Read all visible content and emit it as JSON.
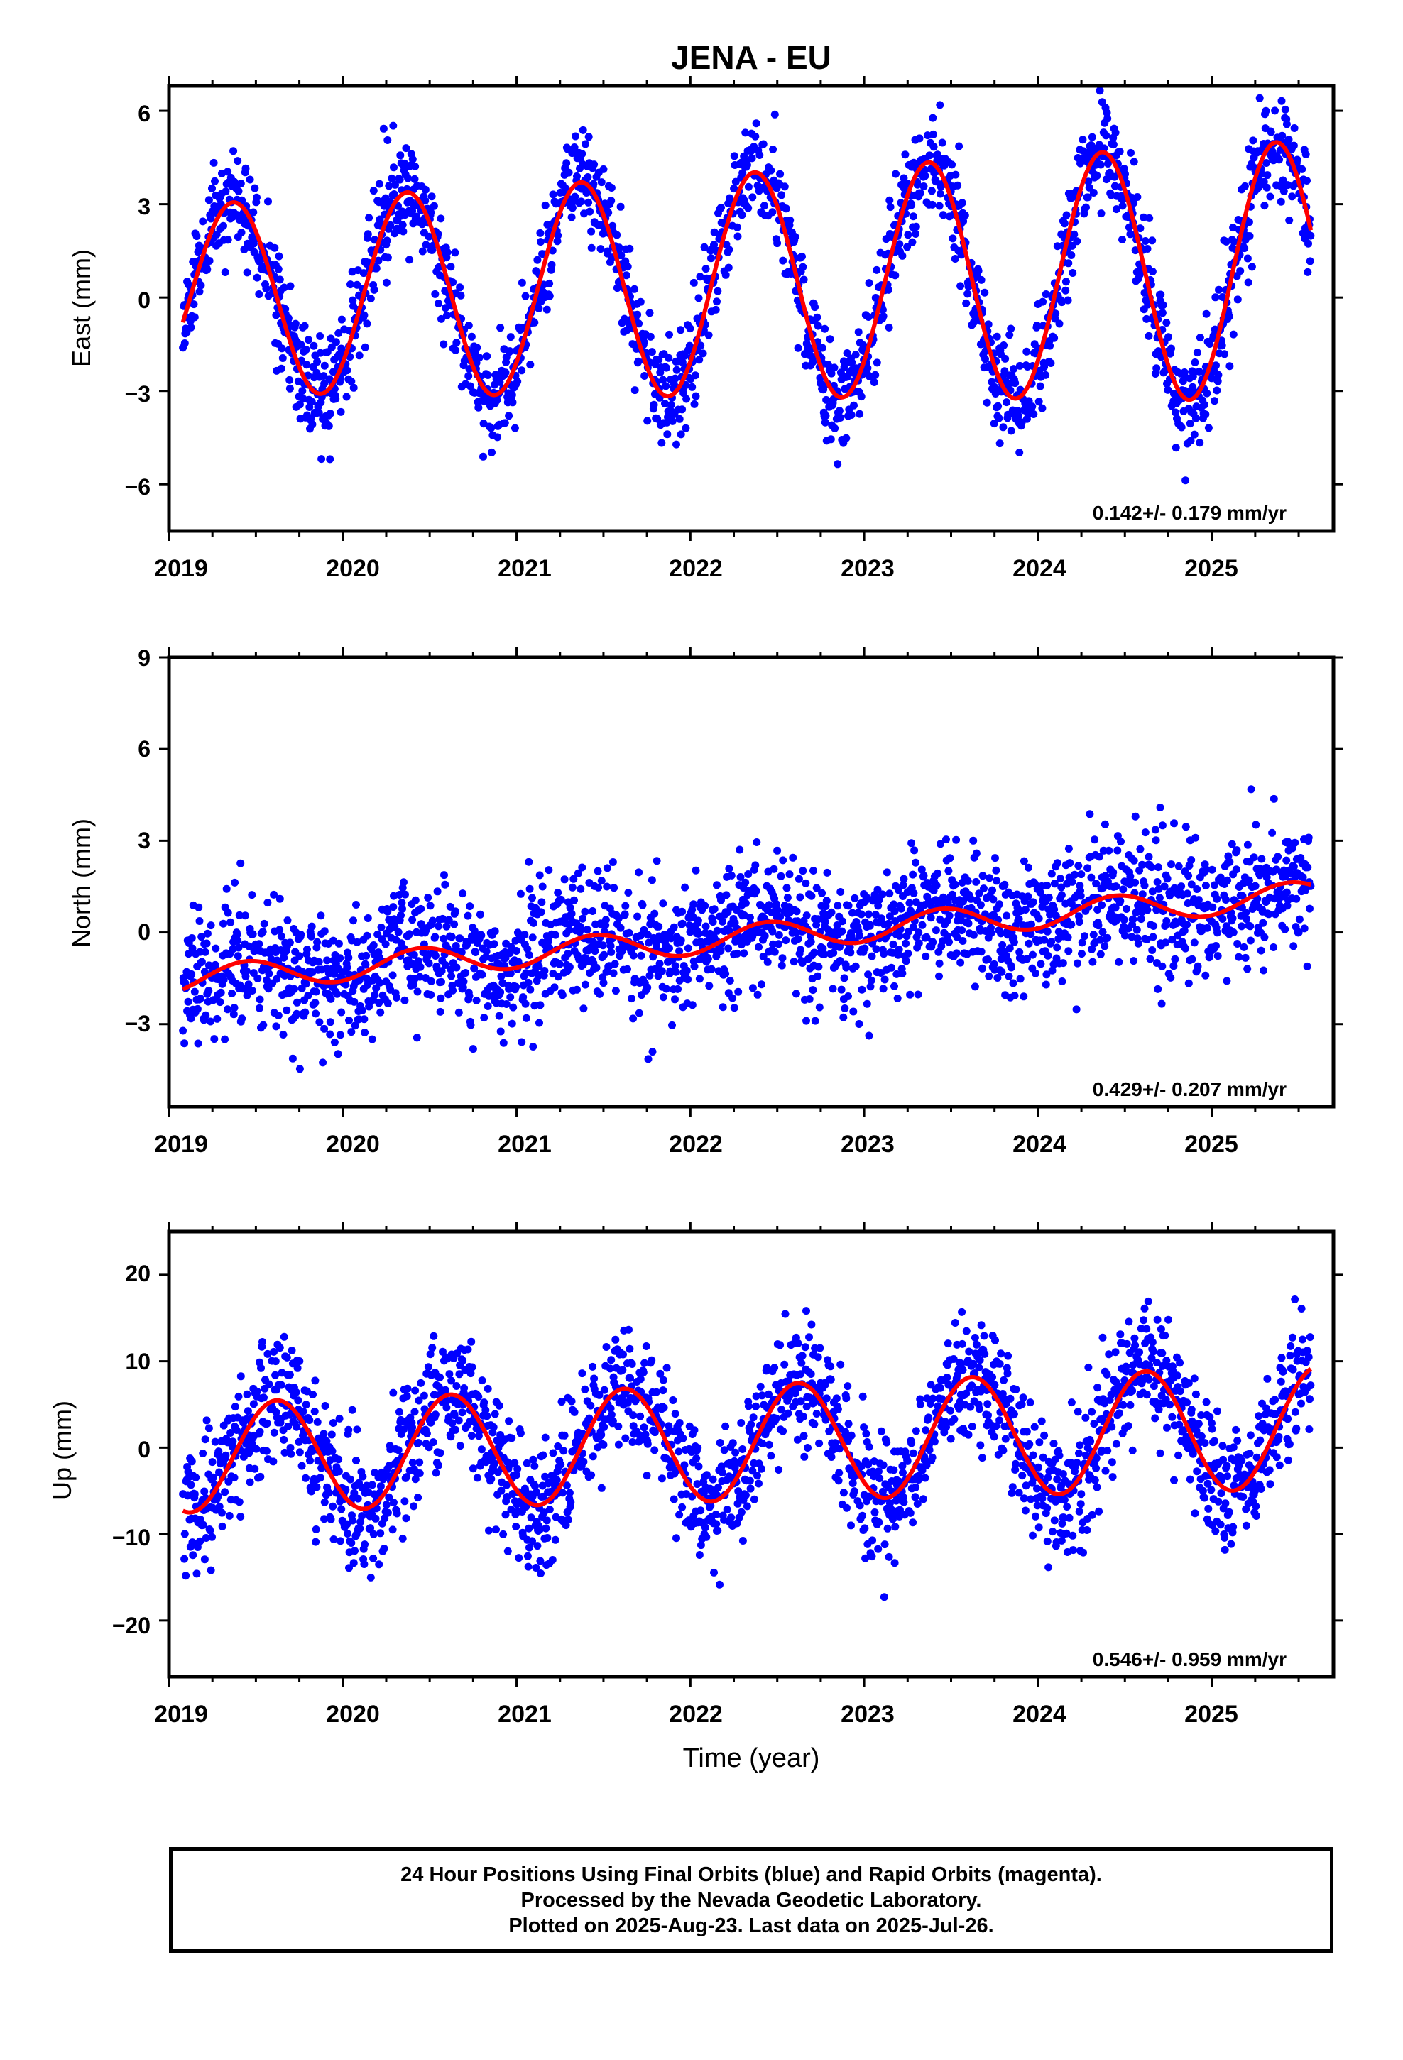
{
  "chart_data": [
    {
      "type": "scatter",
      "title": "JENA - EU",
      "xlabel": "",
      "ylabel": "East (mm)",
      "xlim": [
        2019.0,
        2025.7
      ],
      "ylim": [
        -7.5,
        6.8
      ],
      "xticks": [
        2019,
        2020,
        2021,
        2022,
        2023,
        2024,
        2025
      ],
      "yticks": [
        -6,
        -3,
        0,
        3,
        6
      ],
      "tick_labels": [
        "6",
        "3",
        "0",
        "−3",
        "−6"
      ],
      "rate_text": "0.142+/- 0.179 mm/yr",
      "grid": false,
      "model": {
        "trend": 0.142,
        "offset": -0.05,
        "annual_amp": 3.0,
        "peak": 0.37,
        "amp_growth": 0.06
      },
      "series": [
        {
          "name": "Final Orbits",
          "color": "#0000ff",
          "start": 2019.08,
          "end": 2025.57,
          "noise": 0.85
        },
        {
          "name": "Model fit",
          "color": "#ff0000"
        }
      ]
    },
    {
      "type": "scatter",
      "title": "",
      "xlabel": "",
      "ylabel": "North (mm)",
      "xlim": [
        2019.0,
        2025.7
      ],
      "ylim": [
        -5.7,
        9.0
      ],
      "xticks": [
        2019,
        2020,
        2021,
        2022,
        2023,
        2024,
        2025
      ],
      "yticks": [
        -3,
        0,
        3,
        6,
        9
      ],
      "tick_labels": [
        "9",
        "6",
        "3",
        "0",
        "−3"
      ],
      "rate_text": "0.429+/- 0.207 mm/yr",
      "grid": false,
      "model": {
        "trend": 0.429,
        "offset": -1.55,
        "annual_amp": 0.45,
        "peak": 0.45,
        "amp_growth": 0.0
      },
      "series": [
        {
          "name": "Final Orbits",
          "color": "#0000ff",
          "start": 2019.08,
          "end": 2025.57,
          "noise": 1.05
        },
        {
          "name": "Model fit",
          "color": "#ff0000"
        }
      ]
    },
    {
      "type": "scatter",
      "title": "",
      "xlabel": "Time (year)",
      "ylabel": "Up (mm)",
      "xlim": [
        2019.0,
        2025.7
      ],
      "ylim": [
        -26.5,
        25.0
      ],
      "xticks": [
        2019,
        2020,
        2021,
        2022,
        2023,
        2024,
        2025
      ],
      "yticks": [
        -20,
        -10,
        0,
        10,
        20
      ],
      "tick_labels": [
        "20",
        "10",
        "0",
        "−10",
        "−20"
      ],
      "rate_text": "0.546+/- 0.959 mm/yr",
      "grid": false,
      "model": {
        "trend": 0.546,
        "offset": -1.2,
        "annual_amp": 6.3,
        "peak": 0.62,
        "amp_growth": 0.02
      },
      "series": [
        {
          "name": "Final Orbits",
          "color": "#0000ff",
          "start": 2019.08,
          "end": 2025.57,
          "noise": 3.6
        },
        {
          "name": "Model fit",
          "color": "#ff0000"
        }
      ]
    }
  ],
  "x_tick_labels": [
    "2019",
    "2020",
    "2021",
    "2022",
    "2023",
    "2024",
    "2025"
  ],
  "footer": {
    "line1": "24 Hour Positions Using Final Orbits (blue) and Rapid Orbits (magenta).",
    "line2": "Processed by the Nevada Geodetic Laboratory.",
    "line3": "Plotted on 2025-Aug-23. Last data on 2025-Jul-26."
  }
}
